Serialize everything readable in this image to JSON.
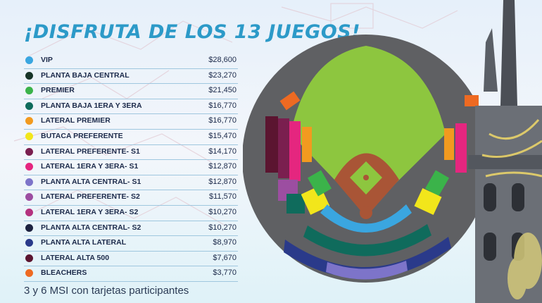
{
  "title": "¡DISFRUTA DE LOS 13 JUEGOS!",
  "footnote": "3 y 6 MSI con tarjetas participantes",
  "price_list": [
    {
      "label": "VIP",
      "price": "$28,600",
      "color": "#3aa6e0"
    },
    {
      "label": "PLANTA BAJA CENTRAL",
      "price": "$23,270",
      "color": "#173428"
    },
    {
      "label": "PREMIER",
      "price": "$21,450",
      "color": "#3bb34a"
    },
    {
      "label": "PLANTA BAJA 1ERA Y 3ERA",
      "price": "$16,770",
      "color": "#0f6b5c"
    },
    {
      "label": "LATERAL PREMIER",
      "price": "$16,770",
      "color": "#f29a1f"
    },
    {
      "label": "BUTACA PREFERENTE",
      "price": "$15,470",
      "color": "#f2e61b"
    },
    {
      "label": "LATERAL PREFERENTE- S1",
      "price": "$14,170",
      "color": "#7a1f4f"
    },
    {
      "label": "LATERAL 1ERA Y 3ERA- S1",
      "price": "$12,870",
      "color": "#e5267f"
    },
    {
      "label": "PLANTA ALTA CENTRAL- S1",
      "price": "$12,870",
      "color": "#7d74c9"
    },
    {
      "label": "LATERAL PREFERENTE- S2",
      "price": "$11,570",
      "color": "#9c4ea1"
    },
    {
      "label": "LATERAL 1ERA Y 3ERA- S2",
      "price": "$10,270",
      "color": "#b4327f"
    },
    {
      "label": "PLANTA ALTA CENTRAL- S2",
      "price": "$10,270",
      "color": "#1d2240"
    },
    {
      "label": "PLANTA ALTA LATERAL",
      "price": "$8,970",
      "color": "#2a3a8a"
    },
    {
      "label": "LATERAL ALTA 500",
      "price": "$7,670",
      "color": "#5b1530"
    },
    {
      "label": "BLEACHERS",
      "price": "$3,770",
      "color": "#ee6a22"
    }
  ]
}
